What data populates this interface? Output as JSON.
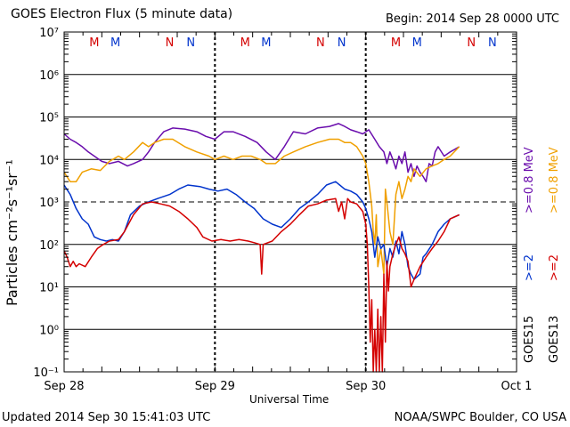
{
  "chart_data": {
    "type": "line",
    "title": "GOES Electron Flux (5 minute data)",
    "begin_label": "Begin: 2014 Sep 28 0000 UTC",
    "updated_label": "Updated 2014 Sep 30 15:41:03 UTC",
    "credit_label": "NOAA/SWPC Boulder, CO USA",
    "xlabel": "Universal Time",
    "ylabel": "Particles cm⁻²s⁻¹sr⁻¹",
    "x_ticks": [
      {
        "day": 0,
        "label": "Sep 28"
      },
      {
        "day": 1,
        "label": "Sep 29"
      },
      {
        "day": 2,
        "label": "Sep 30"
      },
      {
        "day": 3,
        "label": "Oct 1"
      }
    ],
    "xlim_days": [
      0,
      3
    ],
    "y_scale": "log",
    "ylim": [
      0.1,
      10000000
    ],
    "y_ticks": [
      {
        "value": 0.1,
        "label": "10⁻¹"
      },
      {
        "value": 1,
        "label": "10⁰"
      },
      {
        "value": 10,
        "label": "10¹"
      },
      {
        "value": 100,
        "label": "10²"
      },
      {
        "value": 1000,
        "label": "10³"
      },
      {
        "value": 10000,
        "label": "10⁴"
      },
      {
        "value": 100000,
        "label": "10⁵"
      },
      {
        "value": 1000000,
        "label": "10⁶"
      },
      {
        "value": 10000000,
        "label": "10⁷"
      }
    ],
    "threshold_lines": [
      1000
    ],
    "markers": [
      {
        "day": 0.2,
        "label": "M",
        "color": "#d40000"
      },
      {
        "day": 0.34,
        "label": "M",
        "color": "#0033cc"
      },
      {
        "day": 0.7,
        "label": "N",
        "color": "#d40000"
      },
      {
        "day": 0.84,
        "label": "N",
        "color": "#0033cc"
      },
      {
        "day": 1.2,
        "label": "M",
        "color": "#d40000"
      },
      {
        "day": 1.34,
        "label": "M",
        "color": "#0033cc"
      },
      {
        "day": 1.7,
        "label": "N",
        "color": "#d40000"
      },
      {
        "day": 1.84,
        "label": "N",
        "color": "#0033cc"
      },
      {
        "day": 2.2,
        "label": "M",
        "color": "#d40000"
      },
      {
        "day": 2.34,
        "label": "M",
        "color": "#0033cc"
      },
      {
        "day": 2.7,
        "label": "N",
        "color": "#d40000"
      },
      {
        "day": 2.84,
        "label": "N",
        "color": "#0033cc"
      }
    ],
    "legend": {
      "columns": [
        {
          "satellite": "GOES15",
          "entries": [
            {
              "label": ">=2",
              "color": "#0033cc"
            },
            {
              "label": ">=0.8 MeV",
              "color": "#6a0dad"
            }
          ]
        },
        {
          "satellite": "GOES13",
          "entries": [
            {
              "label": ">=2",
              "color": "#d40000"
            },
            {
              "label": ">=0.8 MeV",
              "color": "#f0a000"
            }
          ]
        }
      ]
    },
    "series": [
      {
        "color": "#6a0dad",
        "points": [
          [
            0,
            40000
          ],
          [
            0.04,
            30000
          ],
          [
            0.08,
            25000
          ],
          [
            0.12,
            20000
          ],
          [
            0.16,
            15000
          ],
          [
            0.2,
            12000
          ],
          [
            0.25,
            9000
          ],
          [
            0.3,
            8000
          ],
          [
            0.36,
            9000
          ],
          [
            0.42,
            7000
          ],
          [
            0.46,
            8000
          ],
          [
            0.52,
            10000
          ],
          [
            0.56,
            15000
          ],
          [
            0.6,
            25000
          ],
          [
            0.66,
            45000
          ],
          [
            0.72,
            55000
          ],
          [
            0.8,
            52000
          ],
          [
            0.88,
            45000
          ],
          [
            0.94,
            35000
          ],
          [
            1.0,
            30000
          ],
          [
            1.06,
            45000
          ],
          [
            1.12,
            45000
          ],
          [
            1.2,
            35000
          ],
          [
            1.28,
            25000
          ],
          [
            1.34,
            15000
          ],
          [
            1.4,
            10000
          ],
          [
            1.46,
            20000
          ],
          [
            1.52,
            45000
          ],
          [
            1.6,
            40000
          ],
          [
            1.68,
            55000
          ],
          [
            1.76,
            60000
          ],
          [
            1.82,
            70000
          ],
          [
            1.86,
            60000
          ],
          [
            1.9,
            50000
          ],
          [
            1.94,
            45000
          ],
          [
            1.98,
            40000
          ],
          [
            2.02,
            50000
          ],
          [
            2.06,
            30000
          ],
          [
            2.09,
            20000
          ],
          [
            2.12,
            15000
          ],
          [
            2.14,
            8000
          ],
          [
            2.16,
            15000
          ],
          [
            2.18,
            10000
          ],
          [
            2.2,
            6000
          ],
          [
            2.22,
            12000
          ],
          [
            2.24,
            8000
          ],
          [
            2.26,
            15000
          ],
          [
            2.28,
            5000
          ],
          [
            2.3,
            8000
          ],
          [
            2.32,
            4000
          ],
          [
            2.34,
            7000
          ],
          [
            2.36,
            5000
          ],
          [
            2.38,
            4000
          ],
          [
            2.4,
            3000
          ],
          [
            2.42,
            8000
          ],
          [
            2.44,
            7000
          ],
          [
            2.46,
            15000
          ],
          [
            2.48,
            20000
          ],
          [
            2.52,
            12000
          ],
          [
            2.56,
            15000
          ],
          [
            2.62,
            20000
          ]
        ]
      },
      {
        "color": "#f0a000",
        "points": [
          [
            0,
            5000
          ],
          [
            0.04,
            3000
          ],
          [
            0.08,
            3000
          ],
          [
            0.12,
            5000
          ],
          [
            0.18,
            6000
          ],
          [
            0.24,
            5500
          ],
          [
            0.3,
            9000
          ],
          [
            0.36,
            12000
          ],
          [
            0.4,
            10000
          ],
          [
            0.46,
            15000
          ],
          [
            0.52,
            25000
          ],
          [
            0.56,
            20000
          ],
          [
            0.6,
            25000
          ],
          [
            0.66,
            30000
          ],
          [
            0.72,
            30000
          ],
          [
            0.8,
            20000
          ],
          [
            0.88,
            15000
          ],
          [
            0.96,
            12000
          ],
          [
            1.0,
            10000
          ],
          [
            1.06,
            12000
          ],
          [
            1.12,
            10000
          ],
          [
            1.18,
            12000
          ],
          [
            1.24,
            12000
          ],
          [
            1.3,
            10000
          ],
          [
            1.34,
            8000
          ],
          [
            1.4,
            8000
          ],
          [
            1.46,
            12000
          ],
          [
            1.52,
            15000
          ],
          [
            1.6,
            20000
          ],
          [
            1.68,
            25000
          ],
          [
            1.76,
            30000
          ],
          [
            1.82,
            30000
          ],
          [
            1.86,
            25000
          ],
          [
            1.9,
            25000
          ],
          [
            1.94,
            20000
          ],
          [
            1.98,
            12000
          ],
          [
            2.0,
            8000
          ],
          [
            2.02,
            3000
          ],
          [
            2.04,
            800
          ],
          [
            2.05,
            200
          ],
          [
            2.06,
            100
          ],
          [
            2.07,
            500
          ],
          [
            2.08,
            30
          ],
          [
            2.1,
            80
          ],
          [
            2.12,
            20
          ],
          [
            2.13,
            2000
          ],
          [
            2.14,
            1000
          ],
          [
            2.16,
            200
          ],
          [
            2.18,
            100
          ],
          [
            2.2,
            1500
          ],
          [
            2.22,
            3000
          ],
          [
            2.24,
            1200
          ],
          [
            2.26,
            2000
          ],
          [
            2.28,
            4000
          ],
          [
            2.3,
            3000
          ],
          [
            2.32,
            6000
          ],
          [
            2.36,
            4000
          ],
          [
            2.4,
            6000
          ],
          [
            2.44,
            7000
          ],
          [
            2.48,
            8000
          ],
          [
            2.52,
            10000
          ],
          [
            2.56,
            12000
          ],
          [
            2.62,
            20000
          ]
        ]
      },
      {
        "color": "#0033cc",
        "points": [
          [
            0,
            2500
          ],
          [
            0.04,
            1500
          ],
          [
            0.08,
            700
          ],
          [
            0.12,
            400
          ],
          [
            0.16,
            300
          ],
          [
            0.2,
            150
          ],
          [
            0.24,
            130
          ],
          [
            0.28,
            120
          ],
          [
            0.32,
            130
          ],
          [
            0.36,
            120
          ],
          [
            0.4,
            200
          ],
          [
            0.44,
            500
          ],
          [
            0.5,
            800
          ],
          [
            0.56,
            1000
          ],
          [
            0.62,
            1200
          ],
          [
            0.7,
            1500
          ],
          [
            0.76,
            2000
          ],
          [
            0.82,
            2500
          ],
          [
            0.9,
            2300
          ],
          [
            0.96,
            2000
          ],
          [
            1.02,
            1800
          ],
          [
            1.08,
            2000
          ],
          [
            1.14,
            1500
          ],
          [
            1.2,
            1000
          ],
          [
            1.26,
            700
          ],
          [
            1.32,
            400
          ],
          [
            1.38,
            300
          ],
          [
            1.44,
            250
          ],
          [
            1.5,
            400
          ],
          [
            1.56,
            700
          ],
          [
            1.62,
            1000
          ],
          [
            1.68,
            1500
          ],
          [
            1.74,
            2500
          ],
          [
            1.8,
            3000
          ],
          [
            1.86,
            2000
          ],
          [
            1.9,
            1800
          ],
          [
            1.94,
            1500
          ],
          [
            1.98,
            1000
          ],
          [
            2.0,
            700
          ],
          [
            2.02,
            400
          ],
          [
            2.04,
            200
          ],
          [
            2.06,
            50
          ],
          [
            2.08,
            150
          ],
          [
            2.1,
            80
          ],
          [
            2.12,
            100
          ],
          [
            2.14,
            30
          ],
          [
            2.16,
            80
          ],
          [
            2.18,
            50
          ],
          [
            2.2,
            120
          ],
          [
            2.22,
            60
          ],
          [
            2.24,
            200
          ],
          [
            2.26,
            100
          ],
          [
            2.28,
            30
          ],
          [
            2.3,
            20
          ],
          [
            2.32,
            15
          ],
          [
            2.36,
            20
          ],
          [
            2.38,
            50
          ],
          [
            2.4,
            60
          ],
          [
            2.44,
            100
          ],
          [
            2.48,
            200
          ],
          [
            2.52,
            300
          ],
          [
            2.56,
            400
          ],
          [
            2.62,
            500
          ]
        ]
      },
      {
        "color": "#d40000",
        "points": [
          [
            0,
            70
          ],
          [
            0.02,
            50
          ],
          [
            0.04,
            30
          ],
          [
            0.06,
            40
          ],
          [
            0.08,
            30
          ],
          [
            0.1,
            35
          ],
          [
            0.14,
            30
          ],
          [
            0.18,
            50
          ],
          [
            0.22,
            80
          ],
          [
            0.26,
            100
          ],
          [
            0.3,
            120
          ],
          [
            0.36,
            130
          ],
          [
            0.4,
            200
          ],
          [
            0.46,
            500
          ],
          [
            0.52,
            900
          ],
          [
            0.58,
            1000
          ],
          [
            0.64,
            900
          ],
          [
            0.7,
            800
          ],
          [
            0.76,
            600
          ],
          [
            0.82,
            400
          ],
          [
            0.88,
            250
          ],
          [
            0.92,
            150
          ],
          [
            0.98,
            120
          ],
          [
            1.04,
            130
          ],
          [
            1.1,
            120
          ],
          [
            1.16,
            130
          ],
          [
            1.22,
            120
          ],
          [
            1.26,
            110
          ],
          [
            1.3,
            100
          ],
          [
            1.31,
            20
          ],
          [
            1.32,
            100
          ],
          [
            1.38,
            120
          ],
          [
            1.44,
            200
          ],
          [
            1.5,
            300
          ],
          [
            1.56,
            500
          ],
          [
            1.62,
            800
          ],
          [
            1.68,
            900
          ],
          [
            1.74,
            1100
          ],
          [
            1.8,
            1200
          ],
          [
            1.82,
            600
          ],
          [
            1.84,
            1000
          ],
          [
            1.86,
            400
          ],
          [
            1.88,
            1200
          ],
          [
            1.9,
            1000
          ],
          [
            1.94,
            900
          ],
          [
            1.98,
            600
          ],
          [
            2.0,
            300
          ],
          [
            2.01,
            100
          ],
          [
            2.02,
            10
          ],
          [
            2.03,
            0.5
          ],
          [
            2.04,
            5
          ],
          [
            2.05,
            0.1
          ],
          [
            2.06,
            1
          ],
          [
            2.07,
            0.1
          ],
          [
            2.08,
            3
          ],
          [
            2.09,
            0.1
          ],
          [
            2.1,
            2
          ],
          [
            2.11,
            0.1
          ],
          [
            2.12,
            20
          ],
          [
            2.13,
            0.5
          ],
          [
            2.14,
            40
          ],
          [
            2.15,
            8
          ],
          [
            2.16,
            30
          ],
          [
            2.18,
            60
          ],
          [
            2.2,
            100
          ],
          [
            2.22,
            150
          ],
          [
            2.24,
            80
          ],
          [
            2.26,
            60
          ],
          [
            2.28,
            40
          ],
          [
            2.3,
            10
          ],
          [
            2.32,
            15
          ],
          [
            2.36,
            30
          ],
          [
            2.4,
            50
          ],
          [
            2.44,
            80
          ],
          [
            2.48,
            120
          ],
          [
            2.52,
            200
          ],
          [
            2.56,
            400
          ],
          [
            2.62,
            500
          ]
        ]
      }
    ]
  }
}
